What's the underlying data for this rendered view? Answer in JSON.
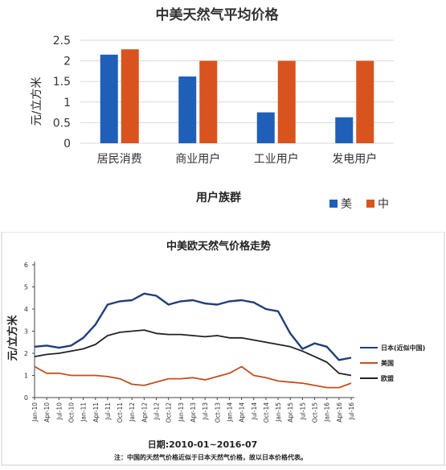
{
  "chart_data": [
    {
      "type": "bar",
      "title": "中美天然气平均价格",
      "xlabel": "用户族群",
      "ylabel": "元/立方米",
      "ylim": [
        0,
        2.5
      ],
      "yticks": [
        "0",
        "0.5",
        "1",
        "1.5",
        "2",
        "2.5"
      ],
      "categories": [
        "居民消费",
        "商业用户",
        "工业用户",
        "发电用户"
      ],
      "series": [
        {
          "name": "美",
          "color": "#1f5fb8",
          "values": [
            2.15,
            1.62,
            0.75,
            0.63
          ]
        },
        {
          "name": "中",
          "color": "#d9531e",
          "values": [
            2.28,
            2.0,
            2.0,
            2.0
          ]
        }
      ],
      "legend_position": "bottom-right",
      "grid": true
    },
    {
      "type": "line",
      "title": "中美欧天然气价格走势",
      "xlabel": "日期:2010-01~2016-07",
      "ylabel": "元/立方米",
      "note": "注：中国的天然气价格近似于日本天然气价格，故以日本价格代表。",
      "ylim": [
        0,
        6
      ],
      "yticks": [
        "0",
        "1",
        "2",
        "3",
        "4",
        "5",
        "6"
      ],
      "x": [
        "Jan-10",
        "Apr-10",
        "Jul-10",
        "Oct-10",
        "Jan-11",
        "Apr-11",
        "Jul-11",
        "Oct-11",
        "Jan-12",
        "Apr-12",
        "Jul-12",
        "Oct-12",
        "Jan-13",
        "Apr-13",
        "Jul-13",
        "Oct-13",
        "Jan-14",
        "Apr-14",
        "Jul-14",
        "Oct-14",
        "Jan-15",
        "Apr-15",
        "Jul-15",
        "Oct-15",
        "Jan-16",
        "Apr-16",
        "Jul-16"
      ],
      "xticks": [
        "Jan-10",
        "Apr-10",
        "Jul-10",
        "Oct-10",
        "Jan-11",
        "Apr-11",
        "Jul-11",
        "Oct-11",
        "Jan-12",
        "Apr-12",
        "Jul-12",
        "Oct-12",
        "Jan-13",
        "Apr-13",
        "Jul-13",
        "Oct-13",
        "Jan-14",
        "Apr-14",
        "Jul-14",
        "Oct-14",
        "Jan-15",
        "Apr-15",
        "Jul-15",
        "Oct-15",
        "Jan-16",
        "Apr-16",
        "Jul-16"
      ],
      "series": [
        {
          "name": "日本(近似中国)",
          "color": "#1f3f7a",
          "values": [
            2.3,
            2.35,
            2.25,
            2.35,
            2.7,
            3.3,
            4.2,
            4.35,
            4.4,
            4.7,
            4.6,
            4.2,
            4.35,
            4.4,
            4.25,
            4.2,
            4.35,
            4.4,
            4.3,
            4.0,
            3.9,
            2.9,
            2.2,
            2.45,
            2.3,
            1.7,
            1.8
          ]
        },
        {
          "name": "美国",
          "color": "#c0501f",
          "values": [
            1.4,
            1.1,
            1.1,
            1.0,
            1.0,
            1.0,
            0.95,
            0.85,
            0.6,
            0.55,
            0.7,
            0.85,
            0.85,
            0.9,
            0.8,
            0.95,
            1.1,
            1.4,
            1.0,
            0.9,
            0.75,
            0.7,
            0.65,
            0.55,
            0.45,
            0.45,
            0.65
          ]
        },
        {
          "name": "欧盟",
          "color": "#222222",
          "values": [
            1.85,
            1.95,
            2.0,
            2.1,
            2.2,
            2.4,
            2.8,
            2.95,
            3.0,
            3.05,
            2.9,
            2.85,
            2.85,
            2.8,
            2.75,
            2.8,
            2.7,
            2.7,
            2.6,
            2.5,
            2.4,
            2.3,
            2.1,
            1.85,
            1.6,
            1.1,
            1.0
          ]
        }
      ],
      "legend_position": "right",
      "grid": false
    }
  ]
}
